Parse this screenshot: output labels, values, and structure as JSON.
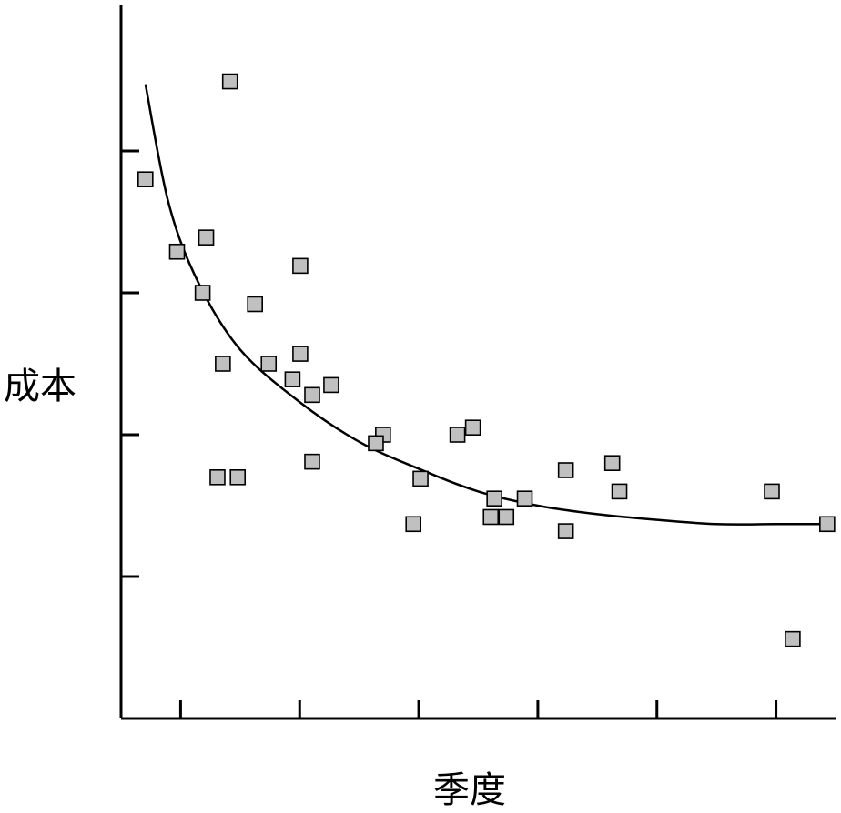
{
  "chart_data": {
    "type": "scatter",
    "title": "",
    "xlabel": "季度",
    "ylabel": "成本",
    "xlim": [
      0,
      12
    ],
    "ylim": [
      0,
      5
    ],
    "x_ticks": [
      1,
      3,
      5,
      7,
      9,
      11
    ],
    "y_ticks": [
      1,
      2,
      3,
      4
    ],
    "tick_labels_shown": false,
    "grid": false,
    "series": [
      {
        "marker": "square",
        "color": "#c0c0c0",
        "edge_color": "#000000",
        "points": [
          {
            "x": 0.41,
            "y": 3.8
          },
          {
            "x": 1.83,
            "y": 4.49
          },
          {
            "x": 0.94,
            "y": 3.29
          },
          {
            "x": 1.43,
            "y": 3.39
          },
          {
            "x": 1.37,
            "y": 3.0
          },
          {
            "x": 3.01,
            "y": 3.19
          },
          {
            "x": 2.25,
            "y": 2.92
          },
          {
            "x": 1.71,
            "y": 2.5
          },
          {
            "x": 2.48,
            "y": 2.5
          },
          {
            "x": 3.01,
            "y": 2.57
          },
          {
            "x": 2.88,
            "y": 2.39
          },
          {
            "x": 3.21,
            "y": 2.28
          },
          {
            "x": 3.53,
            "y": 2.35
          },
          {
            "x": 4.4,
            "y": 2.0
          },
          {
            "x": 4.28,
            "y": 1.94
          },
          {
            "x": 1.62,
            "y": 1.7
          },
          {
            "x": 1.96,
            "y": 1.7
          },
          {
            "x": 3.21,
            "y": 1.81
          },
          {
            "x": 5.03,
            "y": 1.69
          },
          {
            "x": 4.91,
            "y": 1.37
          },
          {
            "x": 5.65,
            "y": 2.0
          },
          {
            "x": 5.91,
            "y": 2.05
          },
          {
            "x": 6.27,
            "y": 1.55
          },
          {
            "x": 6.21,
            "y": 1.42
          },
          {
            "x": 6.47,
            "y": 1.42
          },
          {
            "x": 6.78,
            "y": 1.55
          },
          {
            "x": 7.47,
            "y": 1.75
          },
          {
            "x": 7.47,
            "y": 1.32
          },
          {
            "x": 8.25,
            "y": 1.8
          },
          {
            "x": 8.37,
            "y": 1.6
          },
          {
            "x": 10.93,
            "y": 1.6
          },
          {
            "x": 11.28,
            "y": 0.56
          },
          {
            "x": 11.86,
            "y": 1.37
          }
        ]
      }
    ],
    "trend_line": {
      "type": "smooth curve",
      "color": "#000000",
      "points": [
        {
          "x": 0.41,
          "y": 4.47
        },
        {
          "x": 0.8,
          "y": 3.63
        },
        {
          "x": 1.3,
          "y": 3.07
        },
        {
          "x": 2.0,
          "y": 2.6
        },
        {
          "x": 3.0,
          "y": 2.23
        },
        {
          "x": 4.0,
          "y": 1.95
        },
        {
          "x": 5.0,
          "y": 1.76
        },
        {
          "x": 6.0,
          "y": 1.6
        },
        {
          "x": 7.0,
          "y": 1.5
        },
        {
          "x": 8.0,
          "y": 1.44
        },
        {
          "x": 9.0,
          "y": 1.4
        },
        {
          "x": 10.0,
          "y": 1.37
        },
        {
          "x": 11.0,
          "y": 1.37
        },
        {
          "x": 11.86,
          "y": 1.37
        }
      ]
    }
  }
}
